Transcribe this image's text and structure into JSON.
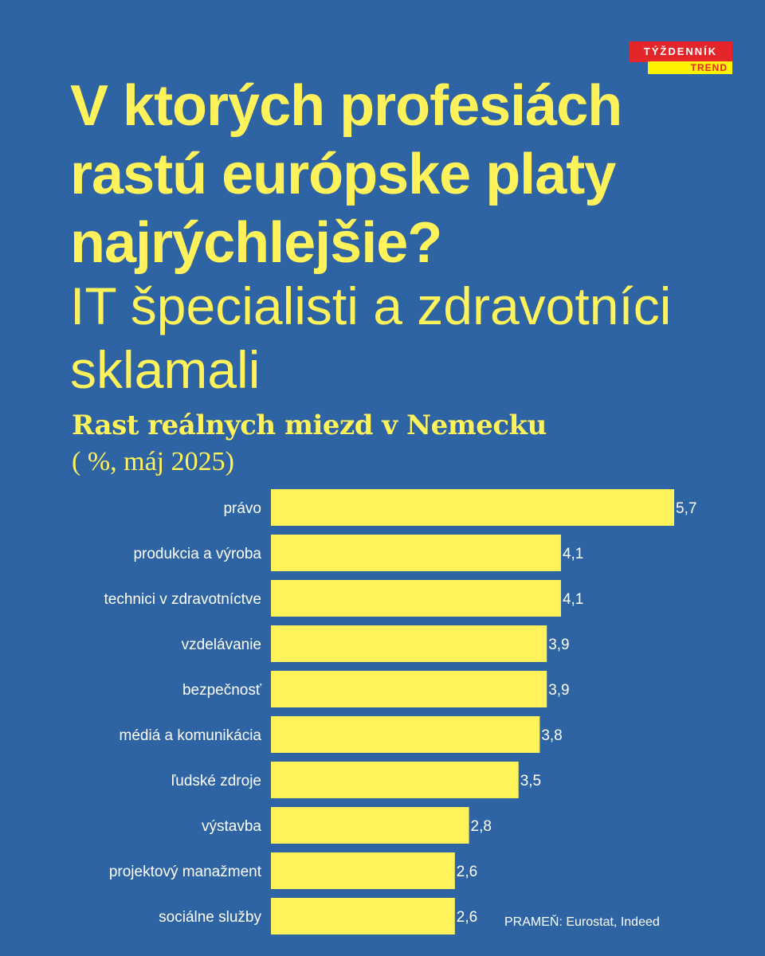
{
  "brand": {
    "logo_text": "TÝŽDENNÍK",
    "logo_sub": "TREND",
    "colors": {
      "background": "#2e64a3",
      "accent": "#fff25b",
      "logo_red": "#e4262b"
    }
  },
  "headline": "V ktorých profesiách rastú európske platy najrýchlejšie?",
  "subheadline": "IT špecialisti a zdravotníci sklamali",
  "source": "PRAMEŇ: Eurostat, Indeed",
  "chart_data": {
    "type": "bar",
    "orientation": "horizontal",
    "title": "Rast reálnych miezd v Nemecku",
    "unit": "( %, máj 2025)",
    "categories": [
      "právo",
      "produkcia a výroba",
      "technici v zdravotníctve",
      "vzdelávanie",
      "bezpečnosť",
      "médiá a komunikácia",
      "ľudské zdroje",
      "výstavba",
      "projektový manažment",
      "sociálne služby"
    ],
    "values": [
      5.7,
      4.1,
      4.1,
      3.9,
      3.9,
      3.8,
      3.5,
      2.8,
      2.6,
      2.6
    ],
    "value_labels": [
      "5,7",
      "4,1",
      "4,1",
      "3,9",
      "3,9",
      "3,8",
      "3,5",
      "2,8",
      "2,6",
      "2,6"
    ],
    "xlim": [
      0,
      5.7
    ],
    "bar_color": "#fff25b",
    "grid": false,
    "legend": "none"
  }
}
